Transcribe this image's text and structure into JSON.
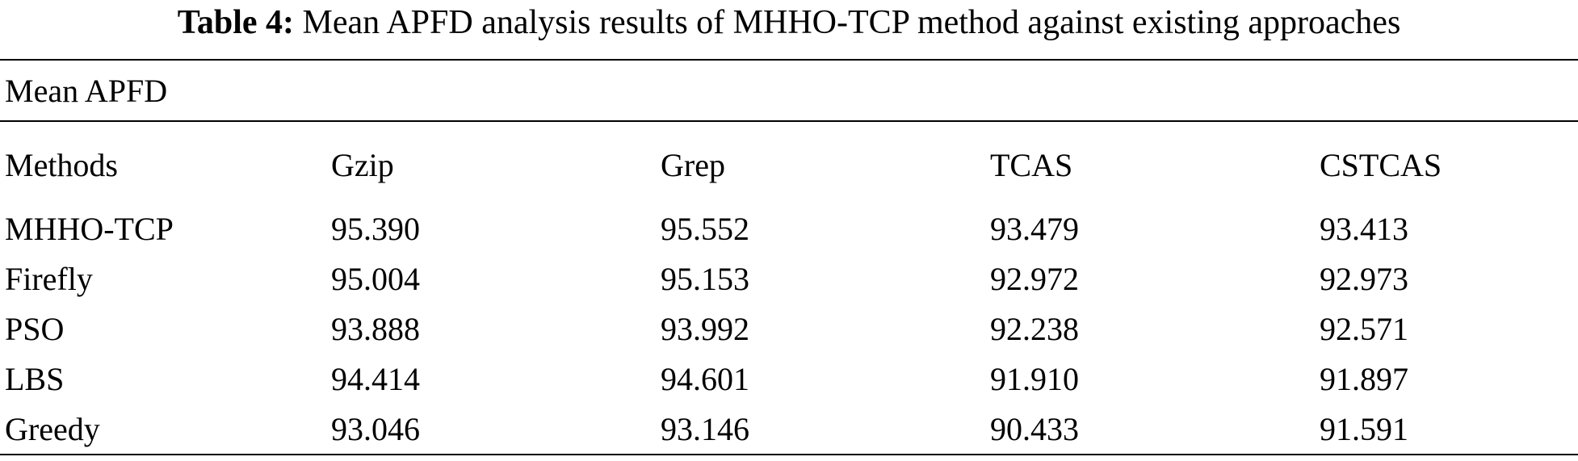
{
  "caption": {
    "label": "Table 4:",
    "text": "Mean APFD analysis results of MHHO-TCP method against existing approaches"
  },
  "group_header": "Mean APFD",
  "columns": [
    "Methods",
    "Gzip",
    "Grep",
    "TCAS",
    "CSTCAS"
  ],
  "rows": [
    [
      "MHHO-TCP",
      "95.390",
      "95.552",
      "93.479",
      "93.413"
    ],
    [
      "Firefly",
      "95.004",
      "95.153",
      "92.972",
      "92.973"
    ],
    [
      "PSO",
      "93.888",
      "93.992",
      "92.238",
      "92.571"
    ],
    [
      "LBS",
      "94.414",
      "94.601",
      "91.910",
      "91.897"
    ],
    [
      "Greedy",
      "93.046",
      "93.146",
      "90.433",
      "91.591"
    ]
  ]
}
